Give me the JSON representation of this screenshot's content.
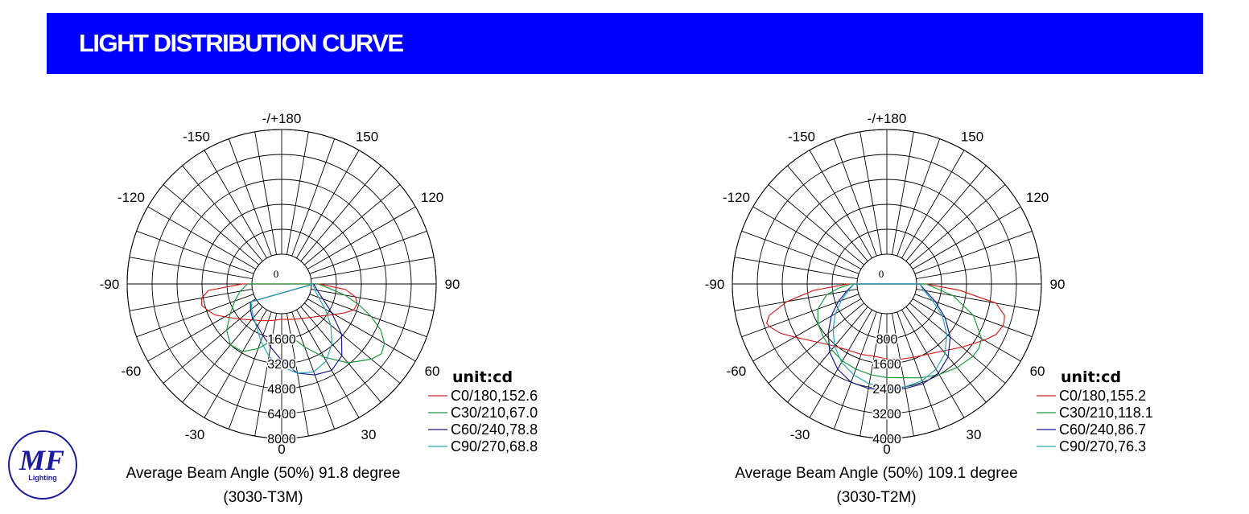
{
  "header": {
    "title": "LIGHT DISTRIBUTION CURVE"
  },
  "logo": {
    "text": "MF",
    "subtext": "Lighting",
    "color": "#1b1b9e"
  },
  "chart_data": [
    {
      "type": "polar",
      "unit_label": "unit:cd",
      "angle_labels": [
        "-/+180",
        "-150",
        "150",
        "-120",
        "120",
        "-90",
        "90",
        "-60",
        "60",
        "-30",
        "30",
        "0"
      ],
      "center_label": "0",
      "radial_ticks": [
        1600,
        3200,
        4800,
        6400,
        8000
      ],
      "rmax": 8000,
      "series": [
        {
          "name": "C0/180,152.6",
          "color": "#d42020",
          "points": [
            [
              -90,
              600
            ],
            [
              -85,
              2800
            ],
            [
              -80,
              3300
            ],
            [
              -75,
              3400
            ],
            [
              -70,
              3100
            ],
            [
              -65,
              2800
            ],
            [
              -60,
              2300
            ],
            [
              -50,
              1600
            ],
            [
              -40,
              1100
            ],
            [
              -30,
              800
            ],
            [
              -20,
              600
            ],
            [
              -10,
              450
            ],
            [
              0,
              350
            ],
            [
              10,
              400
            ],
            [
              20,
              500
            ],
            [
              30,
              650
            ],
            [
              40,
              900
            ],
            [
              50,
              1300
            ],
            [
              60,
              2000
            ],
            [
              65,
              2500
            ],
            [
              70,
              3000
            ],
            [
              75,
              3100
            ],
            [
              80,
              2900
            ],
            [
              85,
              2200
            ],
            [
              90,
              500
            ]
          ]
        },
        {
          "name": "C30/210,67.0",
          "color": "#1e9a3c",
          "points": [
            [
              -90,
              300
            ],
            [
              -85,
              500
            ],
            [
              -80,
              800
            ],
            [
              -70,
              1300
            ],
            [
              -60,
              1900
            ],
            [
              -50,
              2700
            ],
            [
              -40,
              3200
            ],
            [
              -30,
              3100
            ],
            [
              -20,
              2500
            ],
            [
              -10,
              1800
            ],
            [
              0,
              1300
            ],
            [
              10,
              1500
            ],
            [
              20,
              2400
            ],
            [
              30,
              3500
            ],
            [
              40,
              4700
            ],
            [
              50,
              5600
            ],
            [
              55,
              5900
            ],
            [
              60,
              5700
            ],
            [
              65,
              5100
            ],
            [
              70,
              4200
            ],
            [
              75,
              3200
            ],
            [
              80,
              2200
            ],
            [
              85,
              1100
            ],
            [
              90,
              400
            ]
          ]
        },
        {
          "name": "C60/240,78.8",
          "color": "#1a1a90",
          "points": [
            [
              -60,
              400
            ],
            [
              -50,
              700
            ],
            [
              -40,
              1000
            ],
            [
              -30,
              1200
            ],
            [
              -20,
              1600
            ],
            [
              -10,
              2200
            ],
            [
              0,
              3000
            ],
            [
              10,
              3900
            ],
            [
              20,
              4300
            ],
            [
              30,
              4500
            ],
            [
              40,
              4100
            ],
            [
              50,
              3100
            ],
            [
              60,
              1800
            ],
            [
              70,
              900
            ],
            [
              80,
              400
            ],
            [
              90,
              150
            ]
          ]
        },
        {
          "name": "C90/270,68.8",
          "color": "#2aa6b6",
          "points": [
            [
              -60,
              350
            ],
            [
              -50,
              600
            ],
            [
              -40,
              900
            ],
            [
              -30,
              1300
            ],
            [
              -20,
              2000
            ],
            [
              -10,
              2800
            ],
            [
              0,
              3400
            ],
            [
              10,
              3900
            ],
            [
              20,
              4100
            ],
            [
              30,
              3800
            ],
            [
              40,
              3100
            ],
            [
              50,
              2200
            ],
            [
              60,
              1300
            ],
            [
              70,
              600
            ],
            [
              80,
              250
            ],
            [
              90,
              100
            ]
          ]
        }
      ],
      "caption": "Average Beam Angle (50%) 91.8 degree",
      "subcaption": "(3030-T3M)"
    },
    {
      "type": "polar",
      "unit_label": "unit:cd",
      "angle_labels": [
        "-/+180",
        "-150",
        "150",
        "-120",
        "120",
        "-90",
        "90",
        "-60",
        "60",
        "-30",
        "30",
        "0"
      ],
      "center_label": "0",
      "radial_ticks": [
        800,
        1600,
        2400,
        3200,
        4000
      ],
      "rmax": 4000,
      "series": [
        {
          "name": "C0/180,155.2",
          "color": "#d42020",
          "points": [
            [
              -90,
              300
            ],
            [
              -85,
              1400
            ],
            [
              -80,
              2300
            ],
            [
              -75,
              2950
            ],
            [
              -72,
              3100
            ],
            [
              -70,
              3050
            ],
            [
              -65,
              2800
            ],
            [
              -60,
              2450
            ],
            [
              -50,
              1950
            ],
            [
              -40,
              1650
            ],
            [
              -30,
              1500
            ],
            [
              -20,
              1450
            ],
            [
              -10,
              1400
            ],
            [
              0,
              1450
            ],
            [
              10,
              1500
            ],
            [
              20,
              1550
            ],
            [
              30,
              1650
            ],
            [
              40,
              1850
            ],
            [
              50,
              2200
            ],
            [
              60,
              2650
            ],
            [
              65,
              2900
            ],
            [
              70,
              3000
            ],
            [
              72,
              3000
            ],
            [
              75,
              2950
            ],
            [
              80,
              2600
            ],
            [
              85,
              1400
            ],
            [
              90,
              300
            ]
          ]
        },
        {
          "name": "C30/210,118.1",
          "color": "#1e9a3c",
          "points": [
            [
              -90,
              200
            ],
            [
              -85,
              600
            ],
            [
              -80,
              1000
            ],
            [
              -70,
              1400
            ],
            [
              -60,
              1600
            ],
            [
              -50,
              1700
            ],
            [
              -40,
              1800
            ],
            [
              -30,
              1900
            ],
            [
              -20,
              1950
            ],
            [
              -10,
              2000
            ],
            [
              0,
              2050
            ],
            [
              10,
              2100
            ],
            [
              20,
              2250
            ],
            [
              30,
              2400
            ],
            [
              40,
              2550
            ],
            [
              50,
              2650
            ],
            [
              55,
              2650
            ],
            [
              60,
              2550
            ],
            [
              70,
              2000
            ],
            [
              80,
              1200
            ],
            [
              90,
              300
            ]
          ]
        },
        {
          "name": "C60/240,86.7",
          "color": "#1a1a90",
          "points": [
            [
              -90,
              100
            ],
            [
              -80,
              350
            ],
            [
              -70,
              700
            ],
            [
              -60,
              1100
            ],
            [
              -50,
              1500
            ],
            [
              -40,
              1900
            ],
            [
              -30,
              2200
            ],
            [
              -20,
              2400
            ],
            [
              -10,
              2450
            ],
            [
              0,
              2450
            ],
            [
              10,
              2450
            ],
            [
              20,
              2450
            ],
            [
              30,
              2350
            ],
            [
              40,
              2100
            ],
            [
              50,
              1700
            ],
            [
              60,
              1200
            ],
            [
              70,
              700
            ],
            [
              80,
              300
            ],
            [
              90,
              100
            ]
          ]
        },
        {
          "name": "C90/270,76.3",
          "color": "#2aa6b6",
          "points": [
            [
              -90,
              100
            ],
            [
              -80,
              300
            ],
            [
              -70,
              600
            ],
            [
              -60,
              950
            ],
            [
              -50,
              1300
            ],
            [
              -40,
              1650
            ],
            [
              -30,
              1950
            ],
            [
              -20,
              2150
            ],
            [
              -10,
              2300
            ],
            [
              0,
              2350
            ],
            [
              10,
              2400
            ],
            [
              20,
              2350
            ],
            [
              30,
              2200
            ],
            [
              40,
              1950
            ],
            [
              50,
              1550
            ],
            [
              60,
              1100
            ],
            [
              70,
              600
            ],
            [
              80,
              250
            ],
            [
              90,
              100
            ]
          ]
        }
      ],
      "caption": "Average Beam Angle (50%) 109.1 degree",
      "subcaption": "(3030-T2M)"
    }
  ]
}
